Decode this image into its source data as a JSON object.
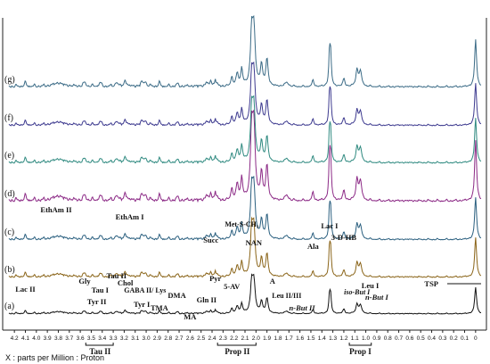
{
  "chart_data": {
    "type": "line",
    "x_axis": {
      "ticks": [
        "4.2",
        "4.1",
        "4.0",
        "3.9",
        "3.8",
        "3.7",
        "3.6",
        "3.5",
        "3.4",
        "3.3",
        "3.2",
        "3.1",
        "3.0",
        "2.9",
        "2.8",
        "2.7",
        "2.6",
        "2.5",
        "2.4",
        "2.3",
        "2.2",
        "2.1",
        "2.0",
        "1.9",
        "1.8",
        "1.7",
        "1.6",
        "1.5",
        "1.4",
        "1.3",
        "1.2",
        "1.1",
        "1.0",
        "0.9",
        "0.8",
        "0.7",
        "0.6",
        "0.5",
        "0.4",
        "0.3",
        "0.2",
        "0.1",
        "0"
      ],
      "range": [
        4.25,
        -0.05
      ],
      "reversed": true,
      "label": "X : parts per Million : Proton"
    },
    "series": [
      {
        "name": "(a)",
        "color": "#111111"
      },
      {
        "name": "(b)",
        "color": "#8a6418"
      },
      {
        "name": "(c)",
        "color": "#2a5f7f"
      },
      {
        "name": "(d)",
        "color": "#8c2a86"
      },
      {
        "name": "(e)",
        "color": "#2f8a80"
      },
      {
        "name": "(f)",
        "color": "#3d3a8f"
      },
      {
        "name": "(g)",
        "color": "#3b6b86"
      }
    ],
    "annotations": [
      {
        "text": "Lac II",
        "ppm": 4.1
      },
      {
        "text": "Gly",
        "ppm": 3.56
      },
      {
        "text": "Tyr II",
        "ppm": 3.45
      },
      {
        "text": "Tau I",
        "ppm": 3.42
      },
      {
        "text": "Tau II",
        "ppm": 3.27
      },
      {
        "text": "Chol",
        "ppm": 3.19
      },
      {
        "text": "Tyr I",
        "ppm": 3.04
      },
      {
        "text": "GABA II/ Lys",
        "ppm": 3.01
      },
      {
        "text": "TMA",
        "ppm": 2.88
      },
      {
        "text": "DMA",
        "ppm": 2.72
      },
      {
        "text": "MA",
        "ppm": 2.6
      },
      {
        "text": "Gln II",
        "ppm": 2.45
      },
      {
        "text": "Pyr",
        "ppm": 2.37
      },
      {
        "text": "5-AV",
        "ppm": 2.22
      },
      {
        "text": "Succ",
        "ppm": 2.41
      },
      {
        "text": "Met-S-CH₃",
        "ppm": 2.13
      },
      {
        "text": "EthAm II",
        "ppm": 3.82
      },
      {
        "text": "EthAm I",
        "ppm": 3.15
      },
      {
        "text": "NAN",
        "ppm": 2.02
      },
      {
        "text": "A",
        "ppm": 1.85
      },
      {
        "text": "Ala",
        "ppm": 1.48
      },
      {
        "text": "Lac I",
        "ppm": 1.33
      },
      {
        "text": "3-D-HB",
        "ppm": 1.2
      },
      {
        "text": "Leu II/III",
        "ppm": 1.72
      },
      {
        "text": "n-But II",
        "ppm": 1.58
      },
      {
        "text": "iso-But I",
        "ppm": 1.08
      },
      {
        "text": "Leu I",
        "ppm": 0.96
      },
      {
        "text": "n-But I",
        "ppm": 0.9
      },
      {
        "text": "TSP",
        "ppm": 0.0
      },
      {
        "text": "Prop I",
        "ppm": 1.05
      },
      {
        "text": "Prop II",
        "ppm": 2.17
      },
      {
        "text": "Tau II",
        "ppm": 3.42
      }
    ],
    "grid": false,
    "legend": "none"
  }
}
